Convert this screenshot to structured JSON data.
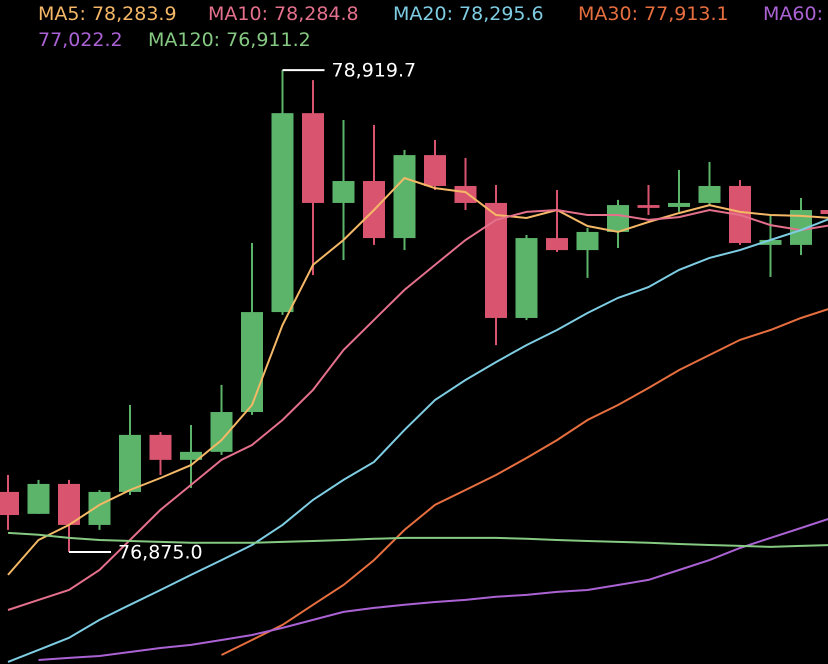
{
  "chart_data": {
    "type": "candlestick",
    "up_color": "#5cb46a",
    "down_color": "#d9556f",
    "ylim": [
      76400,
      79217
    ],
    "legend_separator": ":",
    "candles": {
      "open": [
        77130,
        77037,
        77164,
        76990,
        77130,
        77372,
        77266,
        77300,
        77469,
        77893,
        78737,
        78356,
        78449,
        78207,
        78559,
        78428,
        78356,
        77868,
        78207,
        78156,
        78233,
        78347,
        78339,
        78356,
        78428,
        78178,
        78178,
        78326
      ],
      "high": [
        77202,
        77181,
        77181,
        77138,
        77499,
        77384,
        77414,
        77584,
        78186,
        78919.7,
        78877,
        78708,
        78687,
        78581,
        78623,
        78547,
        78432,
        78220,
        78411,
        78250,
        78369,
        78432,
        78496,
        78530,
        78453,
        78305,
        78377,
        78335
      ],
      "low": [
        76969,
        77037,
        76875.0,
        76969,
        77117,
        77202,
        77147,
        77287,
        77457,
        77881,
        78050,
        78114,
        78178,
        78156,
        78411,
        78326,
        77753,
        77859,
        78148,
        78038,
        78165,
        78305,
        78318,
        78347,
        78178,
        78042,
        78135,
        78301
      ],
      "close": [
        77032,
        77164,
        76990,
        77130,
        77372,
        77266,
        77300,
        77469,
        77893,
        78737,
        78356,
        78449,
        78207,
        78559,
        78428,
        78356,
        77868,
        78207,
        78156,
        78233,
        78347,
        78335,
        78356,
        78428,
        78186,
        78199,
        78326,
        78309
      ]
    },
    "series": [
      {
        "name": "MA5",
        "color": "#f4b867",
        "current": {
          "value": 78283.9,
          "label": "78,283.9"
        },
        "values": [
          76778,
          76926,
          76990,
          77075,
          77138,
          77189,
          77244,
          77350,
          77499,
          77838,
          78093,
          78199,
          78326,
          78462,
          78419,
          78402,
          78305,
          78292,
          78326,
          78258,
          78233,
          78275,
          78313,
          78347,
          78318,
          78305,
          78301,
          78292
        ]
      },
      {
        "name": "MA10",
        "color": "#e4708c",
        "current": {
          "value": 78284.8,
          "label": "78,284.8"
        },
        "values": [
          76629,
          76672,
          76714,
          76799,
          76926,
          77054,
          77160,
          77266,
          77329,
          77435,
          77563,
          77732,
          77860,
          77987,
          78093,
          78199,
          78284,
          78318,
          78326,
          78305,
          78305,
          78284,
          78296,
          78326,
          78305,
          78262,
          78241,
          78262
        ]
      },
      {
        "name": "MA20",
        "color": "#7ecde3",
        "current": {
          "value": 78295.6,
          "label": "78,295.6"
        },
        "values": [
          76409,
          76460,
          76511,
          76587,
          76651,
          76714,
          76778,
          76841,
          76905,
          76990,
          77096,
          77181,
          77257,
          77393,
          77520,
          77605,
          77681,
          77753,
          77817,
          77889,
          77953,
          77999,
          78072,
          78123,
          78156,
          78199,
          78241,
          78292
        ]
      },
      {
        "name": "MA30",
        "color": "#e76f3f",
        "current": {
          "value": 77913.1,
          "label": "77,913.1"
        },
        "values": [
          null,
          null,
          null,
          null,
          null,
          null,
          null,
          76438,
          76502,
          76566,
          76651,
          76735,
          76841,
          76969,
          77075,
          77138,
          77202,
          77274,
          77350,
          77435,
          77499,
          77571,
          77647,
          77711,
          77775,
          77817,
          77868,
          77910
        ]
      },
      {
        "name": "MA60",
        "color": "#ab62d4",
        "current": {
          "value": 77022.2,
          "label": "77,022.2"
        },
        "values": [
          null,
          76417,
          76426,
          76434,
          76451,
          76468,
          76481,
          76502,
          76523,
          76553,
          76587,
          76621,
          76638,
          76651,
          76663,
          76672,
          76685,
          76693,
          76706,
          76714,
          76735,
          76757,
          76799,
          76841,
          76892,
          76935,
          76977,
          77020
        ]
      },
      {
        "name": "MA120",
        "color": "#86c982",
        "current": {
          "value": 76911.2,
          "label": "76,911.2"
        },
        "values": [
          76956,
          76948,
          76935,
          76926,
          76922,
          76918,
          76914,
          76914,
          76914,
          76918,
          76922,
          76926,
          76931,
          76935,
          76935,
          76935,
          76935,
          76931,
          76926,
          76922,
          76918,
          76914,
          76909,
          76905,
          76901,
          76897,
          76901,
          76905
        ]
      }
    ],
    "max_label": {
      "value": 78919.7,
      "label": "78,919.7"
    },
    "min_label": {
      "value": 76875.0,
      "label": "76,875.0"
    }
  }
}
